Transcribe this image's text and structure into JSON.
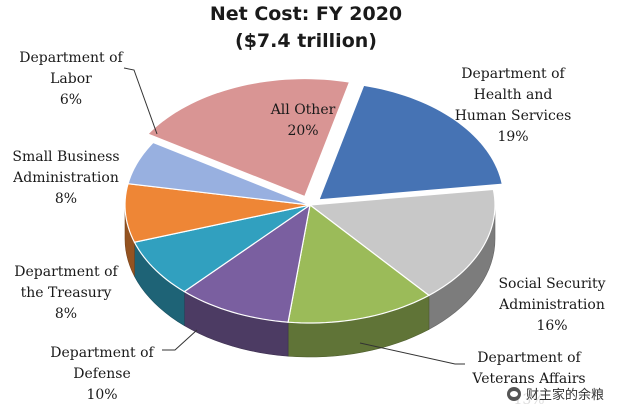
{
  "chart_data": {
    "type": "pie",
    "title": "Net Cost: FY 2020",
    "subtitle": "($7.4 trillion)",
    "slices": [
      {
        "key": "all-other",
        "label_lines": [
          "All Other"
        ],
        "value": 20,
        "value_label": "20%",
        "color": "#d99594"
      },
      {
        "key": "hhs",
        "label_lines": [
          "Department of",
          "Health and",
          "Human Services"
        ],
        "value": 19,
        "value_label": "19%",
        "color": "#4673b4"
      },
      {
        "key": "ssa",
        "label_lines": [
          "Social Security",
          "Administration"
        ],
        "value": 16,
        "value_label": "16%",
        "color": "#c8c8c8"
      },
      {
        "key": "va",
        "label_lines": [
          "Department of",
          "Veterans Affairs"
        ],
        "value": 13,
        "value_label": "13%",
        "color": "#9bbb59"
      },
      {
        "key": "defense",
        "label_lines": [
          "Department of",
          "Defense"
        ],
        "value": 10,
        "value_label": "10%",
        "color": "#7a5fa0"
      },
      {
        "key": "treasury",
        "label_lines": [
          "Department of",
          "the Treasury"
        ],
        "value": 8,
        "value_label": "8%",
        "color": "#31a0bf"
      },
      {
        "key": "sba",
        "label_lines": [
          "Small Business",
          "Administration"
        ],
        "value": 8,
        "value_label": "8%",
        "color": "#ee8636"
      },
      {
        "key": "labor",
        "label_lines": [
          "Department of",
          "Labor"
        ],
        "value": 6,
        "value_label": "6%",
        "color": "#98b0e0"
      }
    ]
  },
  "watermark": {
    "icon": "wechat-icon",
    "text": "财主家的余粮"
  }
}
